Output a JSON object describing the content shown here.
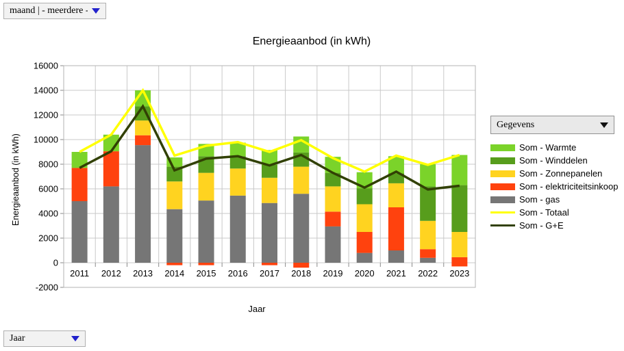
{
  "controls": {
    "month_filter": {
      "value": "maand | - meerdere -"
    },
    "year_filter": {
      "value": "Jaar"
    },
    "data_selector": {
      "value": "Gegevens"
    }
  },
  "colors": {
    "filter_arrow": "#2222CC",
    "selector_arrow": "#111111"
  },
  "chart_data": {
    "type": "bar",
    "stacked": true,
    "title": "Energieaanbod (in kWh)",
    "xlabel": "Jaar",
    "ylabel": "Energieaanbod (in kWh)",
    "ylim": [
      -2000,
      16000
    ],
    "ytick_step": 2000,
    "grid": true,
    "legend_position": "right",
    "categories": [
      "2011",
      "2012",
      "2013",
      "2014",
      "2015",
      "2016",
      "2017",
      "2018",
      "2019",
      "2020",
      "2021",
      "2022",
      "2023"
    ],
    "series": [
      {
        "name": "Som - gas",
        "color": "#767676",
        "values": [
          5000,
          6200,
          9550,
          4350,
          5050,
          5450,
          4850,
          5600,
          2950,
          800,
          1000,
          400,
          0
        ]
      },
      {
        "name": "Som - elektriciteitsinkoop",
        "color": "#FF420E",
        "values": [
          2700,
          2850,
          800,
          0,
          0,
          0,
          0,
          0,
          1200,
          1700,
          3500,
          700,
          450
        ],
        "negative_values": [
          0,
          0,
          0,
          -200,
          -200,
          0,
          -200,
          -400,
          0,
          0,
          0,
          0,
          -300
        ]
      },
      {
        "name": "Som - Zonnepanelen",
        "color": "#FFD320",
        "values": [
          0,
          0,
          1200,
          2250,
          2250,
          2200,
          2050,
          2200,
          2050,
          2250,
          1950,
          2300,
          2050
        ]
      },
      {
        "name": "Som - Winddelen",
        "color": "#579D1C",
        "values": [
          0,
          0,
          1150,
          1200,
          1350,
          1000,
          1050,
          1150,
          1100,
          1300,
          800,
          2800,
          3800
        ]
      },
      {
        "name": "Som - Warmte",
        "color": "#7BD32A",
        "values": [
          1300,
          1350,
          1300,
          750,
          1000,
          1100,
          1200,
          1300,
          1300,
          1300,
          1400,
          1800,
          2450
        ]
      }
    ],
    "line_series": [
      {
        "name": "Som - Totaal",
        "color": "#FFFF00",
        "values": [
          9000,
          10400,
          14000,
          8700,
          9500,
          9800,
          9000,
          9950,
          8500,
          7400,
          8700,
          7950,
          8750
        ]
      },
      {
        "name": "Som - G+E",
        "color": "#314004",
        "values": [
          7700,
          9050,
          12700,
          7500,
          8450,
          8650,
          7900,
          8750,
          7300,
          6100,
          7400,
          5950,
          6250
        ]
      }
    ],
    "legend": {
      "items": [
        {
          "label": "Som - Warmte",
          "color": "#7BD32A",
          "shape": "box"
        },
        {
          "label": "Som - Winddelen",
          "color": "#579D1C",
          "shape": "box"
        },
        {
          "label": "Som - Zonnepanelen",
          "color": "#FFD320",
          "shape": "box"
        },
        {
          "label": "Som - elektriciteitsinkoop",
          "color": "#FF420E",
          "shape": "box"
        },
        {
          "label": "Som - gas",
          "color": "#767676",
          "shape": "box"
        },
        {
          "label": "Som - Totaal",
          "color": "#FFFF00",
          "shape": "line"
        },
        {
          "label": "Som - G+E",
          "color": "#314004",
          "shape": "line"
        }
      ]
    }
  }
}
